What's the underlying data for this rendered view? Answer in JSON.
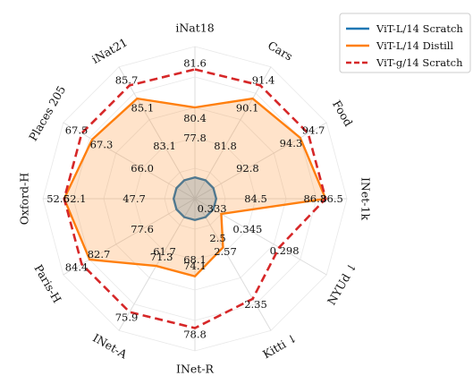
{
  "chart_data": {
    "type": "radar",
    "axes": [
      "iNat18",
      "Cars",
      "Food",
      "INet-1k",
      "NYUd ↓",
      "Kitti ↓",
      "INet-R",
      "INet-A",
      "Paris-H",
      "Oxford-H",
      "Places 205",
      "iNat21"
    ],
    "series": [
      {
        "name": "ViT-L/14 Scratch",
        "color": "#1f77b4",
        "dashed": false,
        "filled": true,
        "values": [
          77.8,
          81.8,
          92.8,
          84.5,
          0.345,
          2.57,
          68.1,
          61.7,
          77.6,
          47.7,
          66.0,
          83.1
        ],
        "labels": [
          "77.8",
          "81.8",
          "92.8",
          "84.5",
          "0.345",
          "2.57",
          "68.1",
          "61.7",
          "77.6",
          "47.7",
          "66.0",
          "83.1"
        ],
        "r": [
          0.14,
          0.14,
          0.14,
          0.14,
          0.14,
          0.14,
          0.14,
          0.14,
          0.14,
          0.14,
          0.14,
          0.14
        ]
      },
      {
        "name": "ViT-L/14 Distill",
        "color": "#ff7f0e",
        "dashed": false,
        "filled": true,
        "values": [
          80.4,
          90.1,
          94.3,
          86.3,
          0.333,
          2.5,
          74.1,
          71.3,
          82.7,
          52.1,
          67.3,
          85.1
        ],
        "labels": [
          "80.4",
          "90.1",
          "94.3",
          "86.3",
          "0.333",
          "2.5",
          "74.1",
          "71.3",
          "82.7",
          "52.1",
          "67.3",
          "85.1"
        ],
        "r": [
          0.6,
          0.76,
          0.8,
          0.86,
          0.2,
          0.37,
          0.51,
          0.51,
          0.8,
          0.86,
          0.78,
          0.76
        ]
      },
      {
        "name": "ViT-g/14 Scratch",
        "color": "#d62728",
        "dashed": true,
        "filled": false,
        "values": [
          81.6,
          91.4,
          94.7,
          86.5,
          0.298,
          2.35,
          78.8,
          75.9,
          84.4,
          52.6,
          67.5,
          85.7
        ],
        "labels": [
          "81.6",
          "91.4",
          "94.7",
          "86.5",
          "0.298",
          "2.35",
          "78.8",
          "75.9",
          "84.4",
          "52.6",
          "67.5",
          "85.7"
        ],
        "r": [
          0.85,
          0.86,
          0.86,
          0.86,
          0.64,
          0.76,
          0.85,
          0.86,
          0.86,
          0.86,
          0.86,
          0.86
        ]
      }
    ],
    "legend": {
      "placement": "top-right",
      "entries": [
        "ViT-L/14 Scratch",
        "ViT-L/14 Distill",
        "ViT-g/14 Scratch"
      ]
    },
    "grid": true
  }
}
